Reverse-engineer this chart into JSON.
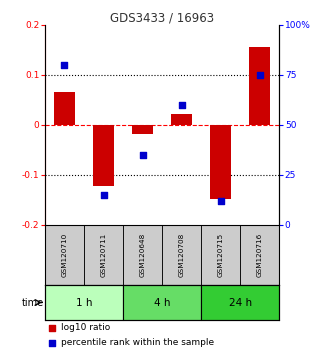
{
  "title": "GDS3433 / 16963",
  "samples": [
    "GSM120710",
    "GSM120711",
    "GSM120648",
    "GSM120708",
    "GSM120715",
    "GSM120716"
  ],
  "log10_ratio": [
    0.065,
    -0.122,
    -0.018,
    0.022,
    -0.148,
    0.155
  ],
  "percentile_rank": [
    80,
    15,
    35,
    60,
    12,
    75
  ],
  "time_groups": [
    {
      "label": "1 h",
      "indices": [
        0,
        1
      ],
      "color": "#bbffbb"
    },
    {
      "label": "4 h",
      "indices": [
        2,
        3
      ],
      "color": "#66dd66"
    },
    {
      "label": "24 h",
      "indices": [
        4,
        5
      ],
      "color": "#33cc33"
    }
  ],
  "ylim_left": [
    -0.2,
    0.2
  ],
  "ylim_right": [
    0,
    100
  ],
  "bar_color": "#cc0000",
  "square_color": "#0000cc",
  "left_tick_labels": [
    "-0.2",
    "-0.1",
    "0",
    "0.1",
    "0.2"
  ],
  "left_tick_values": [
    -0.2,
    -0.1,
    0.0,
    0.1,
    0.2
  ],
  "right_tick_labels": [
    "0",
    "25",
    "50",
    "75",
    "100%"
  ],
  "right_tick_values": [
    0,
    25,
    50,
    75,
    100
  ],
  "hline_dotted": [
    -0.1,
    0.1
  ],
  "hline_red_dashed": 0.0,
  "legend_red_label": "log10 ratio",
  "legend_blue_label": "percentile rank within the sample",
  "time_label": "time",
  "sample_box_color": "#cccccc",
  "bar_width": 0.55,
  "square_size": 18
}
